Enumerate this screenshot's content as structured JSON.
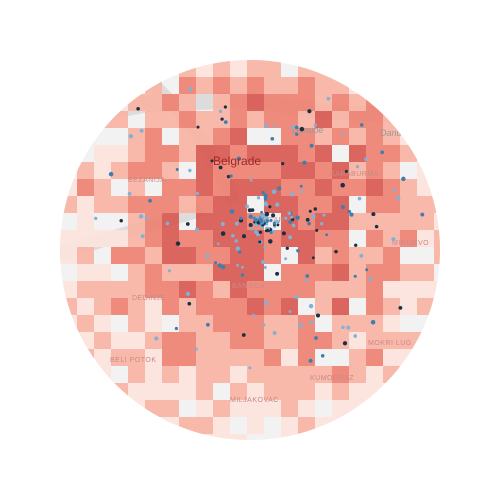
{
  "map": {
    "city_label": "Belgrade",
    "river_labels": [
      "Danube",
      "Danu"
    ],
    "district_labels": [
      "KARABURMA",
      "MIRIJEVO",
      "BANJICA",
      "MOKRI LUG",
      "KUMODRAZ",
      "MILJAKOVAC",
      "BELI POTOK",
      "DEDINJE",
      "BEZANIJA",
      "VRACAR"
    ],
    "colors": {
      "background": "#ffffff",
      "land": "#f2f2f2",
      "water": "#dcdcdc",
      "density_light": "#fde3dc",
      "density_mid": "#f8b1a2",
      "density_high": "#ee7f70",
      "density_peak": "#d8564f",
      "point_light": "#7fb2d6",
      "point_mid": "#3f7fae",
      "point_dark": "#1d2f45"
    }
  }
}
